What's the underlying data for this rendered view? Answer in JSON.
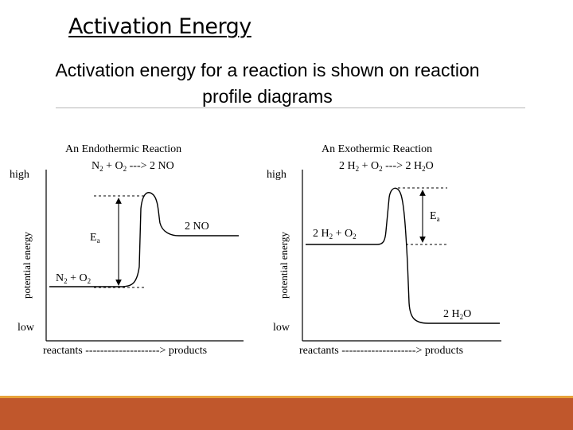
{
  "slide": {
    "title": "Activation Energy",
    "subtitle_line1": "Activation energy for a reaction is shown on reaction",
    "subtitle_line2": "profile diagrams"
  },
  "endothermic": {
    "title": "An Endothermic Reaction",
    "equation": {
      "n": "N",
      "n_sub": "2",
      "plus": " + O",
      "o_sub": "2",
      "arrow": " ---> 2 NO"
    },
    "y_high": "high",
    "y_low": "low",
    "y_axis_label": "potential energy",
    "x_axis_label": "reactants --------------------> products",
    "reactant": {
      "n": "N",
      "n_sub": "2",
      "plus": " + O",
      "o_sub": "2"
    },
    "product": "2 NO",
    "ea": {
      "e": "E",
      "sub": "a"
    }
  },
  "exothermic": {
    "title": "An Exothermic Reaction",
    "equation": {
      "h": "2 H",
      "h_sub": "2",
      "plus": " + O",
      "o_sub": "2",
      "arrow": " ---> 2 H",
      "w_sub": "2",
      "o_end": "O"
    },
    "y_high": "high",
    "y_low": "low",
    "y_axis_label": "potential energy",
    "x_axis_label": "reactants --------------------> products",
    "reactant": {
      "h": "2 H",
      "h_sub": "2",
      "plus": " + O",
      "o_sub": "2"
    },
    "product": {
      "h": "2 H",
      "h_sub": "2",
      "o_end": "O"
    },
    "ea": {
      "e": "E",
      "sub": "a"
    }
  },
  "colors": {
    "footer": "#c0572c",
    "footer_accent": "#e8a23a",
    "divider": "#b8b8b8"
  }
}
